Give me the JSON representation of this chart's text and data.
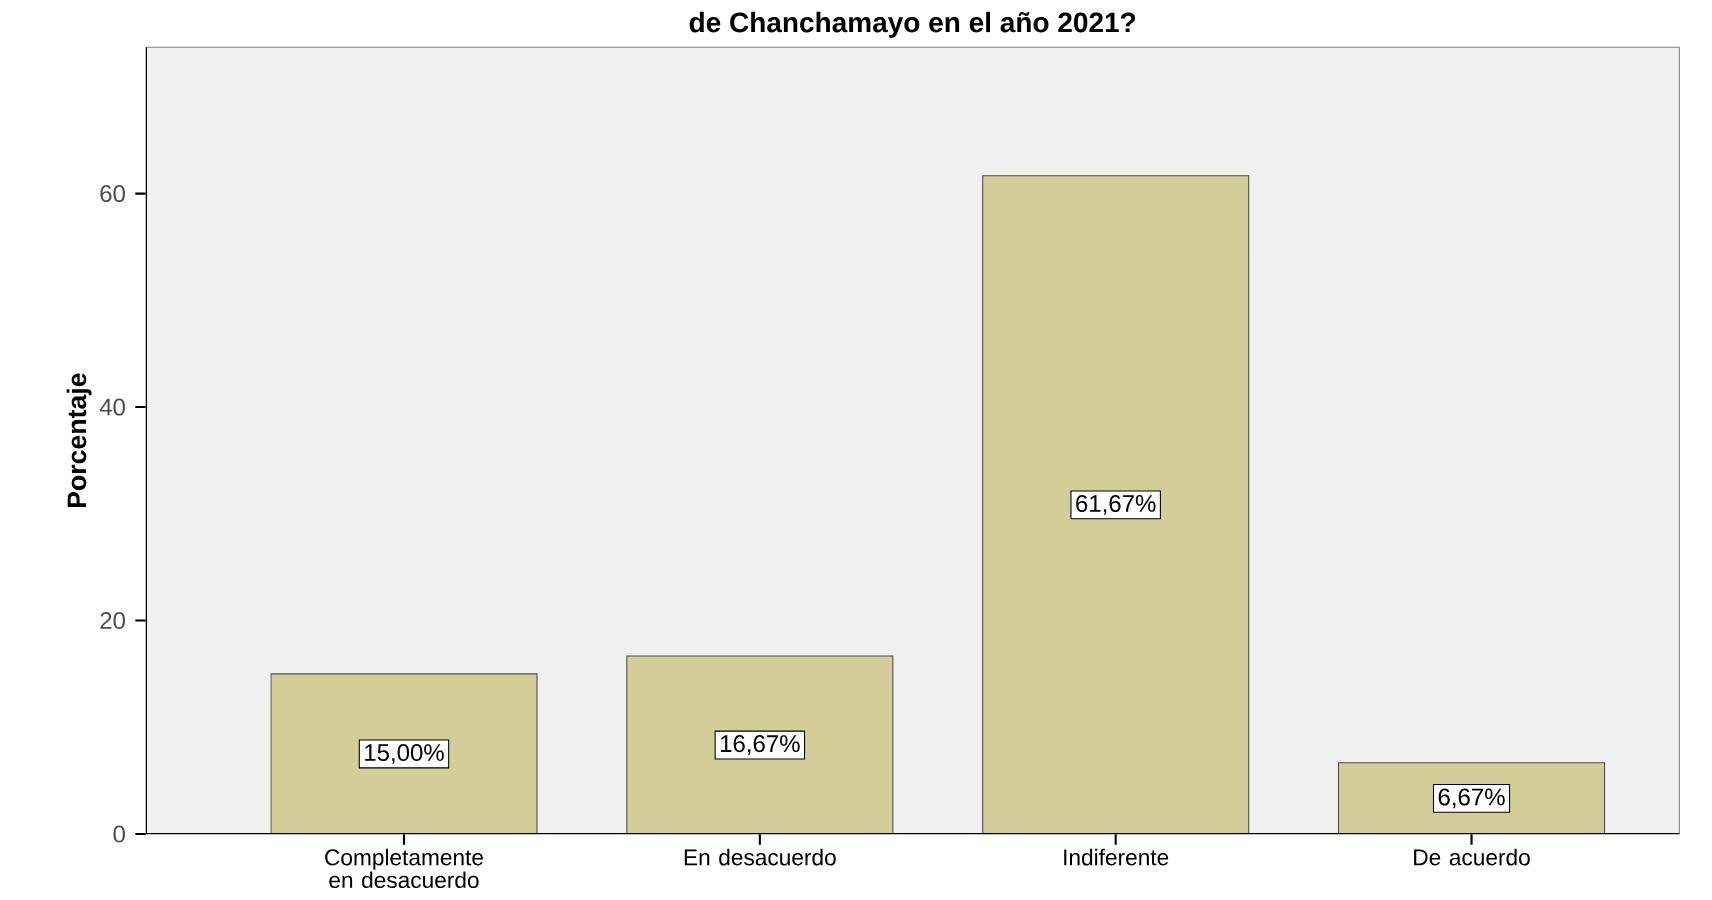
{
  "chart_data": {
    "type": "bar",
    "title": "de Chanchamayo en el año 2021?",
    "ylabel": "Porcentaje",
    "categories": [
      "Completamente en desacuerdo",
      "En desacuerdo",
      "Indiferente",
      "De acuerdo"
    ],
    "values": [
      15.0,
      16.67,
      61.67,
      6.67
    ],
    "value_labels": [
      "15,00%",
      "16,67%",
      "61,67%",
      "6,67%"
    ],
    "color": "#d3ce98",
    "ylim": [
      0,
      73.7
    ],
    "yticks": [
      0,
      20,
      40,
      60
    ],
    "grid": false
  }
}
